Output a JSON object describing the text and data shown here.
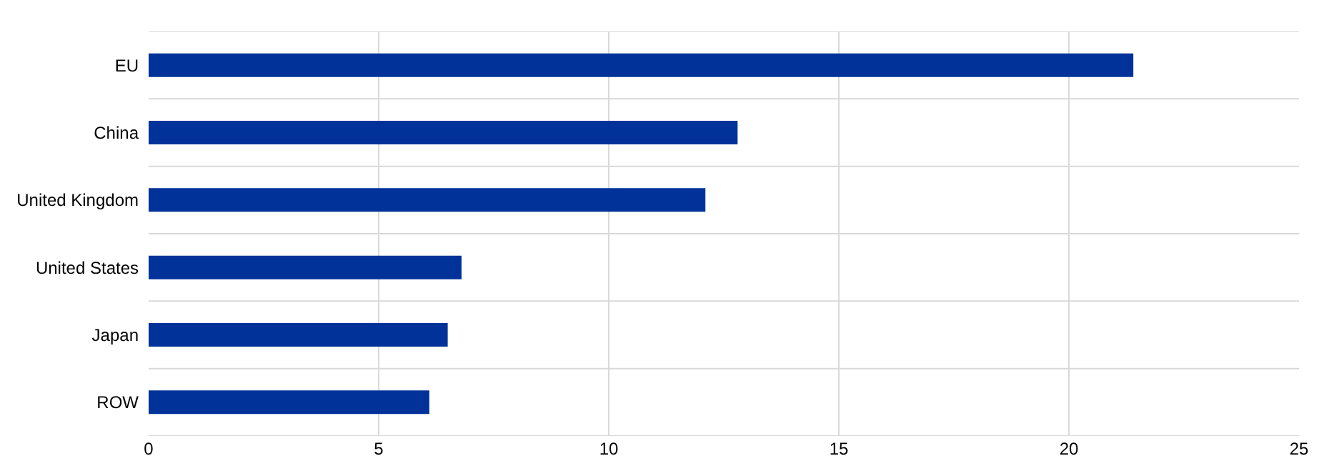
{
  "chart_data": {
    "type": "bar",
    "orientation": "horizontal",
    "categories": [
      "EU",
      "China",
      "United Kingdom",
      "United States",
      "Japan",
      "ROW"
    ],
    "values": [
      21.4,
      12.8,
      12.1,
      6.8,
      6.5,
      6.1
    ],
    "color": "#003299",
    "xlim": [
      0,
      25
    ],
    "xticks": [
      0,
      5,
      10,
      15,
      20,
      25
    ],
    "grid": true
  }
}
